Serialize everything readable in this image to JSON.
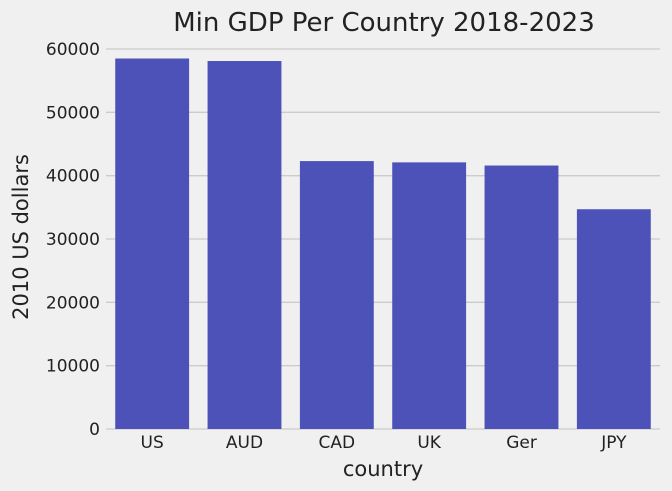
{
  "chart_data": {
    "type": "bar",
    "title": "Min GDP Per Country 2018-2023",
    "xlabel": "country",
    "ylabel": "2010 US dollars",
    "categories": [
      "US",
      "AUD",
      "CAD",
      "UK",
      "Ger",
      "JPY"
    ],
    "values": [
      58500,
      58100,
      42300,
      42100,
      41600,
      34700
    ],
    "ylim": [
      0,
      60000
    ],
    "yticks": [
      "0",
      "10000",
      "20000",
      "30000",
      "40000",
      "50000",
      "60000"
    ],
    "grid": "horizontal",
    "legend": "none",
    "bar_color": "#4c52b8",
    "background_color": "#f0f0f0",
    "grid_color": "#cbcbcb"
  }
}
